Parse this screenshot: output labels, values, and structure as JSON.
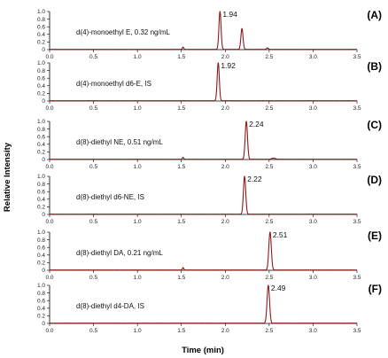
{
  "chart_data": {
    "type": "line",
    "xlabel": "Time (min)",
    "ylabel": "Relative Intensity",
    "xlim": [
      0,
      3.5
    ],
    "ylim": [
      0,
      1
    ],
    "x_ticks": [
      "0.0",
      "0.5",
      "1.0",
      "1.5",
      "2.0",
      "2.5",
      "3.0",
      "3.5"
    ],
    "y_ticks": [
      "0",
      "0.2",
      "0.4",
      "0.6",
      "0.8",
      "1.0"
    ],
    "grid": false,
    "line_color": "#8b1a1a",
    "panels": [
      {
        "letter": "(A)",
        "label": "d(4)-monoethyl E, 0.32 ng/mL",
        "peak_label": "1.94",
        "peaks": [
          {
            "x": 1.94,
            "height": 1.0,
            "width": 0.012
          },
          {
            "x": 2.19,
            "height": 0.55,
            "width": 0.012
          }
        ],
        "bumps": [
          {
            "x": 1.52,
            "height": 0.06,
            "width": 0.008
          },
          {
            "x": 2.48,
            "height": 0.04,
            "width": 0.01
          }
        ]
      },
      {
        "letter": "(B)",
        "label": "d(4)-monoethyl d6-E, IS",
        "peak_label": "1.92",
        "peaks": [
          {
            "x": 1.92,
            "height": 1.0,
            "width": 0.012
          }
        ],
        "bumps": []
      },
      {
        "letter": "(C)",
        "label": "d(8)-diethyl NE, 0.51 ng/mL",
        "peak_label": "2.24",
        "peaks": [
          {
            "x": 2.24,
            "height": 1.0,
            "width": 0.013
          }
        ],
        "bumps": [
          {
            "x": 1.52,
            "height": 0.05,
            "width": 0.008
          },
          {
            "x": 2.55,
            "height": 0.03,
            "width": 0.02
          }
        ]
      },
      {
        "letter": "(D)",
        "label": "d(8)-diethyl d6-NE, IS",
        "peak_label": "2.22",
        "peaks": [
          {
            "x": 2.22,
            "height": 1.0,
            "width": 0.013
          }
        ],
        "bumps": []
      },
      {
        "letter": "(E)",
        "label": "d(8)-diethyl DA, 0.21 ng/mL",
        "peak_label": "2.51",
        "peaks": [
          {
            "x": 2.51,
            "height": 1.0,
            "width": 0.014
          }
        ],
        "bumps": [
          {
            "x": 1.52,
            "height": 0.06,
            "width": 0.008
          }
        ]
      },
      {
        "letter": "(F)",
        "label": "d(8)-diethyl d4-DA, IS",
        "peak_label": "2.49",
        "peaks": [
          {
            "x": 2.49,
            "height": 1.0,
            "width": 0.014
          }
        ],
        "bumps": []
      }
    ]
  }
}
